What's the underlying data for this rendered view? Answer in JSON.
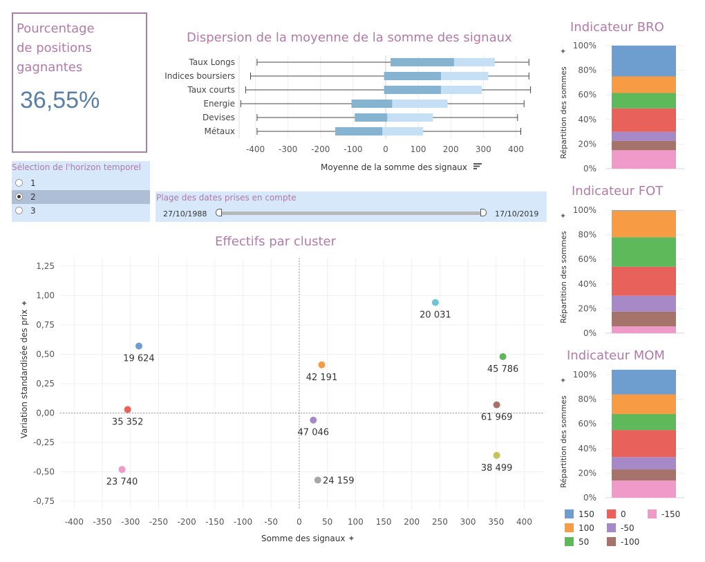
{
  "kpi": {
    "title_line1": "Pourcentage",
    "title_line2": "de positions",
    "title_line3": "gagnantes",
    "value": "36,55%"
  },
  "horizon": {
    "title": "Sélection de l'horizon temporel",
    "options": [
      {
        "label": "1",
        "selected": false
      },
      {
        "label": "2",
        "selected": true
      },
      {
        "label": "3",
        "selected": false
      }
    ]
  },
  "date_range": {
    "title": "Plage des dates prises en compte",
    "start": "27/10/1988",
    "end": "17/10/2019"
  },
  "colors": {
    "title": "#b07aa9",
    "box_dark": "#86b3cf",
    "box_light": "#c5e0f4",
    "grid": "#e8e8e8",
    "zero_line": "#999999"
  },
  "chart_data": [
    {
      "id": "dispersion",
      "type": "box",
      "title": "Dispersion de la moyenne de la somme des signaux",
      "xlabel": "Moyenne de la somme des signaux",
      "xlim": [
        -450,
        450
      ],
      "xticks": [
        "-400",
        "-300",
        "-200",
        "-100",
        "0",
        "100",
        "200",
        "300",
        "400"
      ],
      "xtick_values": [
        -400,
        -300,
        -200,
        -100,
        0,
        100,
        200,
        300,
        400
      ],
      "categories": [
        "Taux Longs",
        "Indices boursiers",
        "Taux courts",
        "Energie",
        "Devises",
        "Métaux"
      ],
      "boxes": [
        {
          "min": -395,
          "q1": 15,
          "median": 210,
          "q3": 335,
          "max": 440
        },
        {
          "min": -415,
          "q1": -5,
          "median": 170,
          "q3": 315,
          "max": 440
        },
        {
          "min": -430,
          "q1": -5,
          "median": 170,
          "q3": 295,
          "max": 445
        },
        {
          "min": -445,
          "q1": -105,
          "median": 20,
          "q3": 190,
          "max": 425
        },
        {
          "min": -395,
          "q1": -95,
          "median": 5,
          "q3": 145,
          "max": 405
        },
        {
          "min": -395,
          "q1": -155,
          "median": -10,
          "q3": 115,
          "max": 415
        }
      ]
    },
    {
      "id": "clusters",
      "type": "scatter",
      "title": "Effectifs par cluster",
      "xlabel": "Somme des signaux",
      "ylabel": "Variation standardisée des prix",
      "xlim": [
        -425,
        435
      ],
      "ylim": [
        -0.82,
        1.32
      ],
      "xticks": [
        "-400",
        "-350",
        "-300",
        "-250",
        "-200",
        "-150",
        "-100",
        "-50",
        "0",
        "50",
        "100",
        "150",
        "200",
        "250",
        "300",
        "350",
        "400"
      ],
      "xtick_values": [
        -400,
        -350,
        -300,
        -250,
        -200,
        -150,
        -100,
        -50,
        0,
        50,
        100,
        150,
        200,
        250,
        300,
        350,
        400
      ],
      "yticks": [
        "1,25",
        "1,00",
        "0,75",
        "0,50",
        "0,25",
        "0,00",
        "-0,25",
        "-0,50",
        "-0,75"
      ],
      "ytick_values": [
        1.25,
        1.0,
        0.75,
        0.5,
        0.25,
        0.0,
        -0.25,
        -0.5,
        -0.75
      ],
      "points": [
        {
          "x": 242,
          "y": 0.94,
          "label": "20 031",
          "color": "#6ec5d4",
          "lx": 0,
          "ly": 22
        },
        {
          "x": -285,
          "y": 0.57,
          "label": "19 624",
          "color": "#6d9ecf",
          "lx": 0,
          "ly": 22
        },
        {
          "x": 40,
          "y": 0.41,
          "label": "42 191",
          "color": "#f79b45",
          "lx": 0,
          "ly": 22
        },
        {
          "x": 362,
          "y": 0.48,
          "label": "45 786",
          "color": "#5db95a",
          "lx": 0,
          "ly": 22
        },
        {
          "x": -305,
          "y": 0.03,
          "label": "35 352",
          "color": "#e8625b",
          "lx": 0,
          "ly": 22
        },
        {
          "x": 351,
          "y": 0.07,
          "label": "61 969",
          "color": "#a6736a",
          "lx": 0,
          "ly": 22
        },
        {
          "x": 25,
          "y": -0.06,
          "label": "47 046",
          "color": "#a889c8",
          "lx": 0,
          "ly": 22
        },
        {
          "x": 351,
          "y": -0.36,
          "label": "38 499",
          "color": "#c6c25d",
          "lx": 0,
          "ly": 22
        },
        {
          "x": -315,
          "y": -0.48,
          "label": "23 740",
          "color": "#ef9ac9",
          "lx": 0,
          "ly": 22
        },
        {
          "x": 33,
          "y": -0.57,
          "label": "24 159",
          "color": "#a7a7a7",
          "lx": 30,
          "ly": 5
        }
      ]
    },
    {
      "id": "bro",
      "type": "bar",
      "stacked": true,
      "title": "Indicateur BRO",
      "ylabel": "Répartition des sommes",
      "ylim": [
        0,
        100
      ],
      "yticks": [
        "100%",
        "80%",
        "60%",
        "40%",
        "20%",
        "0%"
      ],
      "ytick_values": [
        100,
        80,
        60,
        40,
        20,
        0
      ],
      "series": [
        {
          "name": "-150",
          "value": 15
        },
        {
          "name": "-100",
          "value": 7.5
        },
        {
          "name": "-50",
          "value": 7.5
        },
        {
          "name": "0",
          "value": 19
        },
        {
          "name": "50",
          "value": 12.5
        },
        {
          "name": "100",
          "value": 13.5
        },
        {
          "name": "150",
          "value": 25
        }
      ]
    },
    {
      "id": "fot",
      "type": "bar",
      "stacked": true,
      "title": "Indicateur FOT",
      "ylabel": "Répartition des sommes",
      "ylim": [
        0,
        100
      ],
      "yticks": [
        "100%",
        "80%",
        "60%",
        "40%",
        "20%",
        "0%"
      ],
      "ytick_values": [
        100,
        80,
        60,
        40,
        20,
        0
      ],
      "series": [
        {
          "name": "-150",
          "value": 5.5
        },
        {
          "name": "-100",
          "value": 12
        },
        {
          "name": "-50",
          "value": 13
        },
        {
          "name": "0",
          "value": 23.5
        },
        {
          "name": "50",
          "value": 24
        },
        {
          "name": "100",
          "value": 21.5
        },
        {
          "name": "150",
          "value": 0.5
        }
      ]
    },
    {
      "id": "mom",
      "type": "bar",
      "stacked": true,
      "title": "Indicateur MOM",
      "ylabel": "Répartition des sommes",
      "ylim": [
        0,
        100
      ],
      "yticks": [
        "100%",
        "80%",
        "60%",
        "40%",
        "20%",
        "0%"
      ],
      "ytick_values": [
        100,
        80,
        60,
        40,
        20,
        0
      ],
      "series": [
        {
          "name": "-150",
          "value": 14
        },
        {
          "name": "-100",
          "value": 9
        },
        {
          "name": "-50",
          "value": 10
        },
        {
          "name": "0",
          "value": 22
        },
        {
          "name": "50",
          "value": 13
        },
        {
          "name": "100",
          "value": 16
        },
        {
          "name": "150",
          "value": 20
        }
      ]
    }
  ],
  "legend": [
    {
      "label": "150",
      "color": "#6d9ecf"
    },
    {
      "label": "0",
      "color": "#e8625b"
    },
    {
      "label": "-150",
      "color": "#ef9ac9"
    },
    {
      "label": "100",
      "color": "#f79b45"
    },
    {
      "label": "-50",
      "color": "#a889c8"
    },
    {
      "label": "50",
      "color": "#5db95a"
    },
    {
      "label": "-100",
      "color": "#a6736a"
    }
  ]
}
